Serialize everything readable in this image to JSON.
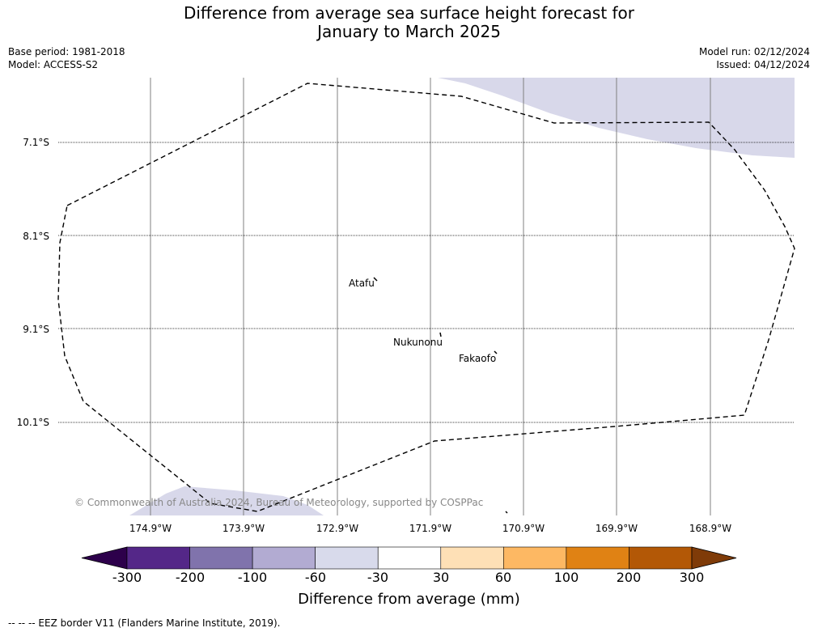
{
  "header": {
    "title_line1": "Difference from average sea surface height forecast for",
    "title_line2": "January to March 2025",
    "base_period": "Base period: 1981-2018",
    "model": "Model: ACCESS-S2",
    "model_run": "Model run: 02/12/2024",
    "issued": "Issued: 04/12/2024"
  },
  "map": {
    "lat_labels": [
      "7.1°S",
      "8.1°S",
      "9.1°S",
      "10.1°S"
    ],
    "lon_labels": [
      "174.9°W",
      "173.9°W",
      "172.9°W",
      "171.9°W",
      "170.9°W",
      "169.9°W",
      "168.9°W"
    ],
    "places": [
      "Atafu",
      "Nukunonu",
      "Fakaofo"
    ],
    "copyright": "© Commonwealth of Australia 2024, Bureau of Meteorology, supported by COSPPac",
    "colors": {
      "anomaly_fill": "#d8d8ea",
      "gridline": "#808080",
      "border": "#000000"
    }
  },
  "colorbar": {
    "ticks": [
      "-300",
      "-200",
      "-100",
      "-60",
      "-30",
      "30",
      "60",
      "100",
      "200",
      "300"
    ],
    "colors": [
      "#2d004b",
      "#542788",
      "#8073ac",
      "#b2abd2",
      "#d8daeb",
      "#ffffff",
      "#fee0b6",
      "#fdb863",
      "#e08214",
      "#b35806",
      "#7f3b08"
    ],
    "label": "Difference from average (mm)"
  },
  "legend": {
    "eez_border": "-- -- -- EEZ border V11 (Flanders Marine Institute, 2019)."
  }
}
